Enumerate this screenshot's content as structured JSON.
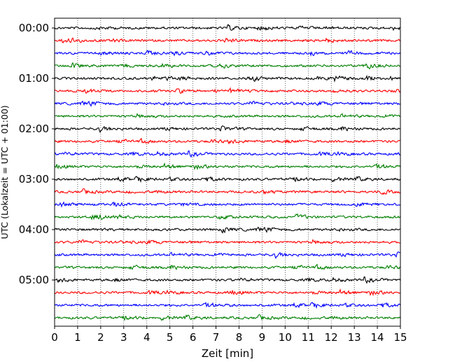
{
  "chart_data": {
    "type": "line",
    "title": "",
    "xlabel": "Zeit  [min]",
    "ylabel": "UTC (Lokalzeit = UTC + 01:00)",
    "xlim": [
      0,
      15
    ],
    "x_ticks": [
      "0",
      "1",
      "2",
      "3",
      "4",
      "5",
      "6",
      "7",
      "8",
      "9",
      "10",
      "11",
      "12",
      "13",
      "14",
      "15"
    ],
    "y_ticks": [
      "00:00",
      "01:00",
      "02:00",
      "03:00",
      "04:00",
      "05:00"
    ],
    "grid": "vertical dotted",
    "trace_colors": [
      "#000000",
      "#ff0000",
      "#0000ff",
      "#007f00"
    ],
    "trace_count": 24,
    "trace_minutes": 15
  }
}
